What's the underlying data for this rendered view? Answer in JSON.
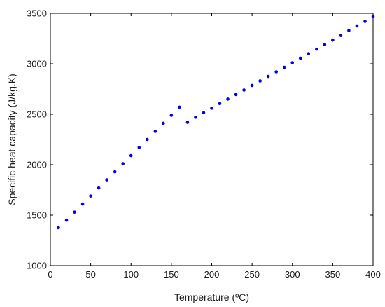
{
  "chart_data": {
    "type": "scatter",
    "xlabel": "Temperature (ºC)",
    "ylabel": "Specific heat capacity (J/kg.K)",
    "xlim": [
      0,
      400
    ],
    "ylim": [
      1000,
      3500
    ],
    "xticks": [
      "0",
      "50",
      "100",
      "150",
      "200",
      "250",
      "300",
      "350",
      "400"
    ],
    "yticks": [
      "1000",
      "1500",
      "2000",
      "2500",
      "3000",
      "3500"
    ],
    "grid": false,
    "marker_color": "#0000ee",
    "series": [
      {
        "x": [
          10,
          20,
          30,
          40,
          50,
          60,
          70,
          80,
          90,
          100,
          110,
          120,
          130,
          140,
          150,
          160,
          170,
          180,
          190,
          200,
          210,
          220,
          230,
          240,
          250,
          260,
          270,
          280,
          290,
          300,
          310,
          320,
          330,
          340,
          350,
          360,
          370,
          380,
          390,
          400
        ],
        "y": [
          1375,
          1450,
          1530,
          1610,
          1690,
          1770,
          1850,
          1930,
          2010,
          2090,
          2170,
          2250,
          2330,
          2410,
          2490,
          2570,
          2420,
          2470,
          2515,
          2560,
          2605,
          2650,
          2695,
          2740,
          2785,
          2830,
          2875,
          2920,
          2965,
          3010,
          3055,
          3100,
          3145,
          3190,
          3235,
          3280,
          3330,
          3375,
          3420,
          3470
        ]
      }
    ]
  }
}
